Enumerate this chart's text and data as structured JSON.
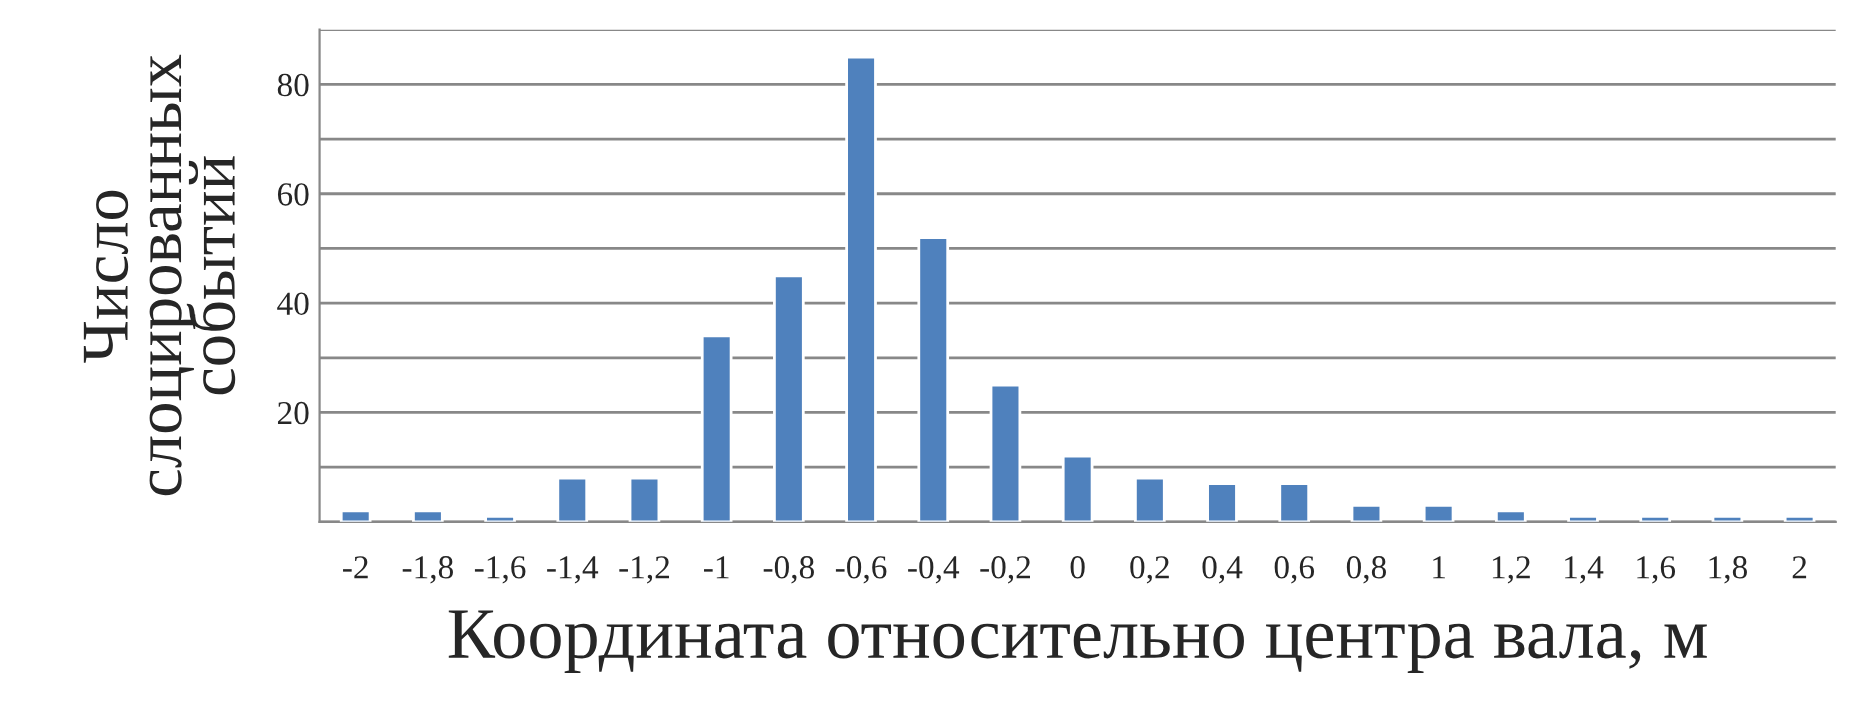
{
  "chart_data": {
    "type": "bar",
    "xlabel": "Координата относительно центра вала, м",
    "ylabel": "Число\nслоцированных\nсобытий",
    "categories": [
      "-2",
      "-1,8",
      "-1,6",
      "-1,4",
      "-1,2",
      "-1",
      "-0,8",
      "-0,6",
      "-0,4",
      "-0,2",
      "0",
      "0,2",
      "0,4",
      "0,6",
      "0,8",
      "1",
      "1,2",
      "1,4",
      "1,6",
      "1,8",
      "2"
    ],
    "values": [
      2,
      2,
      1,
      8,
      8,
      34,
      45,
      85,
      52,
      25,
      12,
      8,
      7,
      7,
      3,
      3,
      2,
      1,
      1,
      1,
      1
    ],
    "color": "#4f81bd",
    "ylim": [
      0,
      90
    ],
    "yticks": [
      {
        "value": 0,
        "label": null
      },
      {
        "value": 10,
        "label": null
      },
      20,
      {
        "value": 30,
        "label": null
      },
      40,
      {
        "value": 50,
        "label": null
      },
      60,
      {
        "value": 70,
        "label": null
      },
      80,
      {
        "value": 90,
        "label": null
      }
    ],
    "grid": "y"
  }
}
